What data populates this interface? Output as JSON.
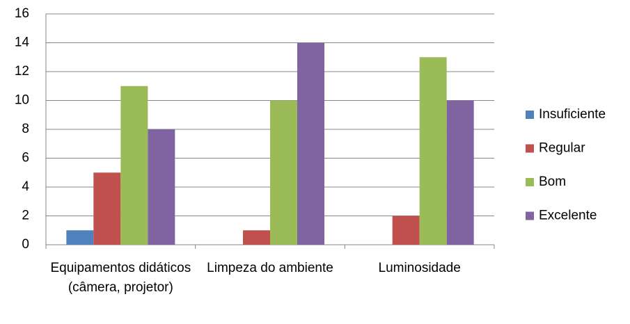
{
  "chart_data": {
    "type": "bar",
    "categories": [
      "Equipamentos didáticos (câmera, projetor)",
      "Limpeza do ambiente",
      "Luminosidade"
    ],
    "series": [
      {
        "name": "Insuficiente",
        "color": "#4f81bd",
        "values": [
          1,
          0,
          0
        ]
      },
      {
        "name": "Regular",
        "color": "#c0504d",
        "values": [
          5,
          1,
          2
        ]
      },
      {
        "name": "Bom",
        "color": "#9bbb59",
        "values": [
          11,
          10,
          13
        ]
      },
      {
        "name": "Excelente",
        "color": "#8064a2",
        "values": [
          8,
          14,
          10
        ]
      }
    ],
    "ylim": [
      0,
      16
    ],
    "yticks": [
      0,
      2,
      4,
      6,
      8,
      10,
      12,
      14,
      16
    ],
    "grid": true,
    "legend": "right"
  }
}
